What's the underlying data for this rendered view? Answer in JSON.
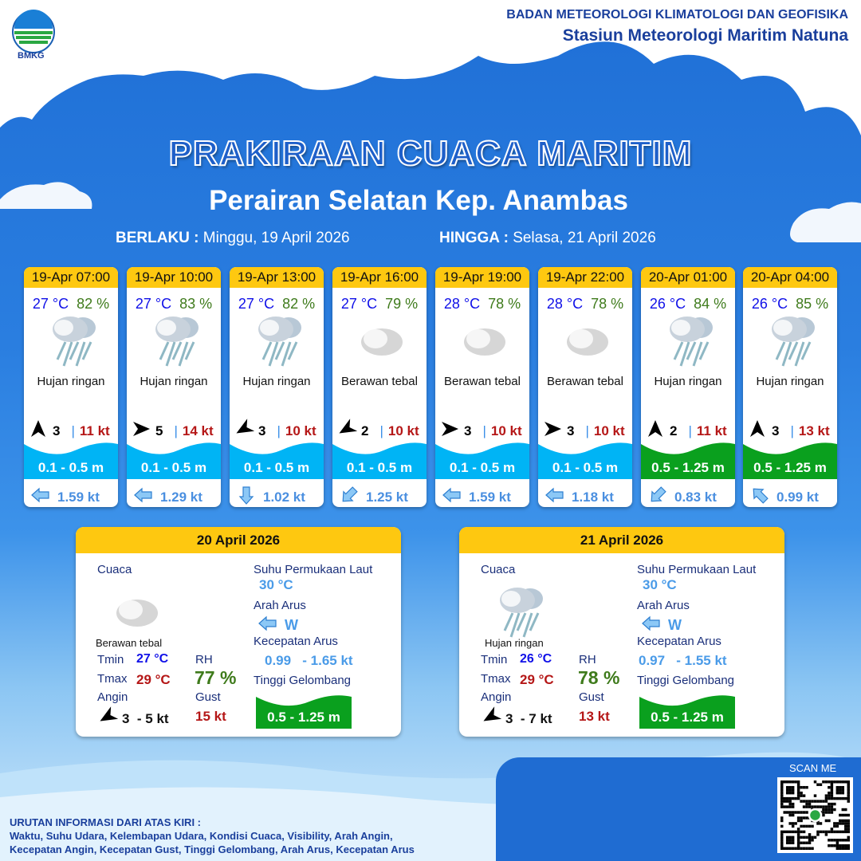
{
  "agency": {
    "name": "BADAN METEOROLOGI KLIMATOLOGI DAN GEOFISIKA",
    "station": "Stasiun Meteorologi Maritim Natuna",
    "logo_text": "BMKG"
  },
  "title": "PRAKIRAAN CUACA MARITIM",
  "subtitle": "Perairan Selatan Kep. Anambas",
  "validity": {
    "from_label": "BERLAKU :",
    "from": "Minggu, 19 April 2026",
    "to_label": "HINGGA :",
    "to": "Selasa, 21 April 2026"
  },
  "colors": {
    "header_yellow": "#fec810",
    "wave_low": "#00b4f5",
    "wave_mid": "#0aa01e",
    "temp": "#1010e8",
    "humidity": "#3f7b1c",
    "gust": "#b51717",
    "current": "#4a8fe0"
  },
  "forecasts": [
    {
      "time": "19-Apr 07:00",
      "temp": "27 °C",
      "rh": "82 %",
      "icon": "rain-cloud-icon",
      "weather": "Hujan ringan",
      "wind_dir_deg": 180,
      "wind": "3",
      "gust": "11 kt",
      "wave": "0.1 - 0.5 m",
      "wave_level": "low",
      "current_dir_deg": 270,
      "current": "1.59 kt"
    },
    {
      "time": "19-Apr 10:00",
      "temp": "27 °C",
      "rh": "83 %",
      "icon": "rain-cloud-icon",
      "weather": "Hujan ringan",
      "wind_dir_deg": 270,
      "wind": "5",
      "gust": "14 kt",
      "wave": "0.1 - 0.5 m",
      "wave_level": "low",
      "current_dir_deg": 270,
      "current": "1.29 kt"
    },
    {
      "time": "19-Apr 13:00",
      "temp": "27 °C",
      "rh": "82 %",
      "icon": "rain-cloud-icon",
      "weather": "Hujan ringan",
      "wind_dir_deg": 60,
      "wind": "3",
      "gust": "10 kt",
      "wave": "0.1 - 0.5 m",
      "wave_level": "low",
      "current_dir_deg": 180,
      "current": "1.02 kt"
    },
    {
      "time": "19-Apr 16:00",
      "temp": "27 °C",
      "rh": "79 %",
      "icon": "cloud-icon",
      "weather": "Berawan tebal",
      "wind_dir_deg": 60,
      "wind": "2",
      "gust": "10 kt",
      "wave": "0.1 - 0.5 m",
      "wave_level": "low",
      "current_dir_deg": 225,
      "current": "1.25 kt"
    },
    {
      "time": "19-Apr 19:00",
      "temp": "28 °C",
      "rh": "78 %",
      "icon": "cloud-icon",
      "weather": "Berawan tebal",
      "wind_dir_deg": 270,
      "wind": "3",
      "gust": "10 kt",
      "wave": "0.1 - 0.5 m",
      "wave_level": "low",
      "current_dir_deg": 270,
      "current": "1.59 kt"
    },
    {
      "time": "19-Apr 22:00",
      "temp": "28 °C",
      "rh": "78 %",
      "icon": "cloud-icon",
      "weather": "Berawan tebal",
      "wind_dir_deg": 270,
      "wind": "3",
      "gust": "10 kt",
      "wave": "0.1 - 0.5 m",
      "wave_level": "low",
      "current_dir_deg": 270,
      "current": "1.18 kt"
    },
    {
      "time": "20-Apr 01:00",
      "temp": "26 °C",
      "rh": "84 %",
      "icon": "rain-cloud-icon",
      "weather": "Hujan ringan",
      "wind_dir_deg": 180,
      "wind": "2",
      "gust": "11 kt",
      "wave": "0.5 - 1.25 m",
      "wave_level": "mid",
      "current_dir_deg": 225,
      "current": "0.83 kt"
    },
    {
      "time": "20-Apr 04:00",
      "temp": "26 °C",
      "rh": "85 %",
      "icon": "rain-cloud-icon",
      "weather": "Hujan ringan",
      "wind_dir_deg": 180,
      "wind": "3",
      "gust": "13 kt",
      "wave": "0.5 - 1.25 m",
      "wave_level": "mid",
      "current_dir_deg": 315,
      "current": "0.99 kt"
    }
  ],
  "labels": {
    "weather": "Cuaca",
    "sst": "Suhu Permukaan Laut",
    "current_dir": "Arah Arus",
    "current_speed": "Kecepatan Arus",
    "wave": "Tinggi Gelombang",
    "tmin": "Tmin",
    "tmax": "Tmax",
    "rh": "RH",
    "wind": "Angin",
    "gust": "Gust"
  },
  "daily": [
    {
      "date": "20 April 2026",
      "icon": "cloud-icon",
      "weather": "Berawan tebal",
      "tmin": "27 °C",
      "tmax": "29 °C",
      "rh": "77 %",
      "wind_dir_deg": 60,
      "wind": "3  - 5 kt",
      "gust": "15 kt",
      "sst": "30 °C",
      "current_dir": "W",
      "current_speed": "0.99   - 1.65 kt",
      "wave": "0.5 - 1.25 m"
    },
    {
      "date": "21 April 2026",
      "icon": "rain-cloud-icon",
      "weather": "Hujan ringan",
      "tmin": "26 °C",
      "tmax": "29 °C",
      "rh": "78 %",
      "wind_dir_deg": 60,
      "wind": "3  - 7 kt",
      "gust": "13 kt",
      "sst": "30 °C",
      "current_dir": "W",
      "current_speed": "0.97   - 1.55 kt",
      "wave": "0.5 - 1.25 m"
    }
  ],
  "footer": {
    "heading": "URUTAN INFORMASI DARI ATAS KIRI :",
    "line1": "Waktu, Suhu Udara, Kelembapan Udara, Kondisi Cuaca, Visibility, Arah Angin,",
    "line2": "Kecepatan Angin, Kecepatan Gust, Tinggi Gelombang, Arah Arus, Kecepatan Arus"
  },
  "qr": {
    "label": "SCAN ME"
  }
}
